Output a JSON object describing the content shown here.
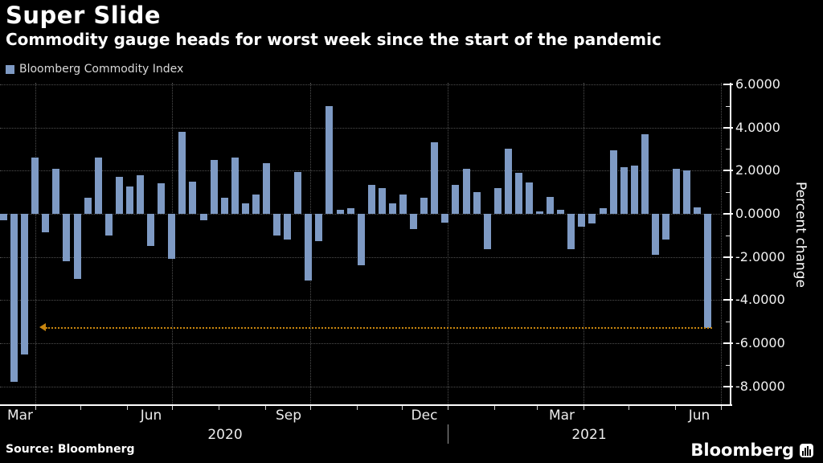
{
  "header": {
    "title": "Super Slide",
    "subtitle": "Commodity gauge heads for worst week since the start of the pandemic"
  },
  "legend": {
    "label": "Bloomberg Commodity Index"
  },
  "footer": {
    "source": "Source: Bloombnerg",
    "brand": "Bloomberg"
  },
  "colors": {
    "background": "#000000",
    "bar": "#7e9ac4",
    "annotation": "#c8860f",
    "grid": "#4f4f4f",
    "axis": "#ffffff",
    "text": "#ffffff"
  },
  "chart_data": {
    "type": "bar",
    "title": "Super Slide",
    "subtitle": "Commodity gauge heads for worst week since the start of the pandemic",
    "ylabel": "Percent change",
    "ylim": [
      -8.8,
      6.1
    ],
    "grid": "dotted",
    "legend_position": "top-left",
    "x_description": "weekly bars, Mar 2020 - Jun 2021",
    "series": [
      {
        "name": "Bloomberg Commodity Index",
        "values": [
          -0.3,
          -7.8,
          -6.5,
          2.6,
          -0.85,
          2.1,
          -2.2,
          -3.0,
          0.75,
          2.6,
          -1.0,
          1.7,
          1.25,
          1.8,
          -1.5,
          1.4,
          -2.1,
          3.8,
          1.5,
          -0.3,
          2.5,
          0.75,
          2.6,
          0.5,
          0.9,
          2.35,
          -1.0,
          -1.2,
          1.95,
          -3.1,
          -1.25,
          5.0,
          0.2,
          0.25,
          -2.4,
          1.35,
          1.2,
          0.5,
          0.9,
          -0.7,
          0.75,
          3.3,
          -0.4,
          1.35,
          2.1,
          1.0,
          -1.65,
          1.2,
          3.0,
          1.9,
          1.45,
          0.1,
          0.8,
          0.2,
          -1.65,
          -0.6,
          -0.45,
          0.25,
          2.95,
          2.15,
          2.25,
          3.7,
          -1.9,
          -1.2,
          2.1,
          2.0,
          0.3,
          -5.3
        ]
      }
    ],
    "yticks": [
      {
        "value": 6,
        "label": "6.0000"
      },
      {
        "value": 4,
        "label": "4.0000"
      },
      {
        "value": 2,
        "label": "2.0000"
      },
      {
        "value": 0,
        "label": "0.0000"
      },
      {
        "value": -2,
        "label": "-2.0000"
      },
      {
        "value": -4,
        "label": "-4.0000"
      },
      {
        "value": -6,
        "label": "-6.0000"
      },
      {
        "value": -8,
        "label": "-8.0000"
      }
    ],
    "yticks_minor": [
      5,
      3,
      1,
      -1,
      -3,
      -5,
      -7
    ],
    "grid_y": [
      6,
      4,
      2,
      0,
      -2,
      -4,
      -6,
      -8
    ],
    "xaxis": {
      "month_labels": [
        {
          "label": "Mar",
          "x": 25
        },
        {
          "label": "Jun",
          "x": 188
        },
        {
          "label": "Sep",
          "x": 359
        },
        {
          "label": "Dec",
          "x": 528
        },
        {
          "label": "Mar",
          "x": 699
        },
        {
          "label": "Jun",
          "x": 870
        }
      ],
      "year_labels": [
        {
          "label": "2020",
          "x": 280
        },
        {
          "label": "2021",
          "x": 733
        }
      ],
      "month_tick_x": [
        44,
        100,
        158,
        214,
        272,
        330,
        386,
        444,
        500,
        557,
        615,
        668,
        726,
        782,
        840,
        897
      ],
      "quarter_grid_x": [
        44,
        214,
        386,
        557,
        726,
        897
      ],
      "year_divider_x": 557
    },
    "annotation": {
      "type": "horizontal-dotted-line-with-left-arrow",
      "value": -5.3,
      "x_start": 57,
      "x_end": 886
    }
  }
}
